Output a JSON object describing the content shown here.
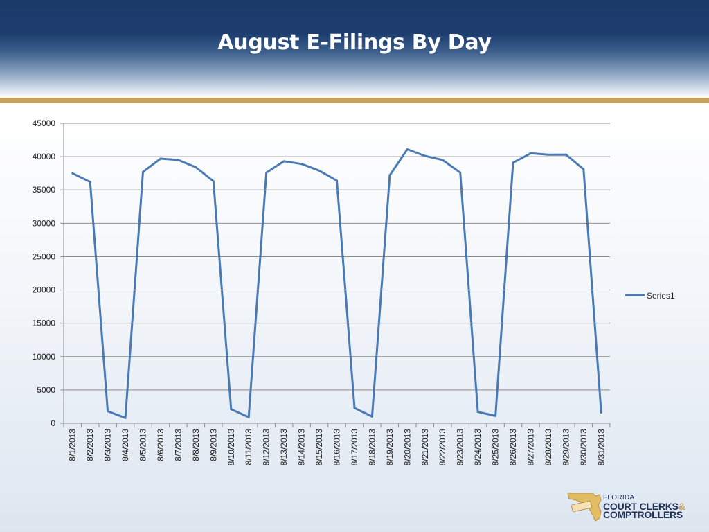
{
  "title": "August E-Filings By Day",
  "colors": {
    "line": "#4a7ab5",
    "grid": "#8c8c8c",
    "header": "#1a3a6a",
    "gold": "#c9a15b"
  },
  "logo": {
    "small": "FLORIDA",
    "line1": "COURT CLERKS",
    "ampersand": "&",
    "line2": "COMPTROLLERS",
    "icon": "florida-map-logo-icon"
  },
  "chart_data": {
    "type": "line",
    "title": "",
    "xlabel": "",
    "ylabel": "",
    "ylim": [
      0,
      45000
    ],
    "yticks": [
      0,
      5000,
      10000,
      15000,
      20000,
      25000,
      30000,
      35000,
      40000,
      45000
    ],
    "grid": true,
    "legend_position": "right",
    "categories": [
      "8/1/2013",
      "8/2/2013",
      "8/3/2013",
      "8/4/2013",
      "8/5/2013",
      "8/6/2013",
      "8/7/2013",
      "8/8/2013",
      "8/9/2013",
      "8/10/2013",
      "8/11/2013",
      "8/12/2013",
      "8/13/2013",
      "8/14/2013",
      "8/15/2013",
      "8/16/2013",
      "8/17/2013",
      "8/18/2013",
      "8/19/2013",
      "8/20/2013",
      "8/21/2013",
      "8/22/2013",
      "8/23/2013",
      "8/24/2013",
      "8/25/2013",
      "8/26/2013",
      "8/27/2013",
      "8/28/2013",
      "8/29/2013",
      "8/30/2013",
      "8/31/2013"
    ],
    "series": [
      {
        "name": "Series1",
        "values": [
          37500,
          36200,
          1800,
          800,
          37700,
          39700,
          39500,
          38400,
          36300,
          2100,
          900,
          37600,
          39300,
          38900,
          37900,
          36400,
          2300,
          1000,
          37200,
          41100,
          40100,
          39500,
          37600,
          1700,
          1100,
          39100,
          40500,
          40300,
          40300,
          38100,
          1600
        ]
      }
    ]
  }
}
